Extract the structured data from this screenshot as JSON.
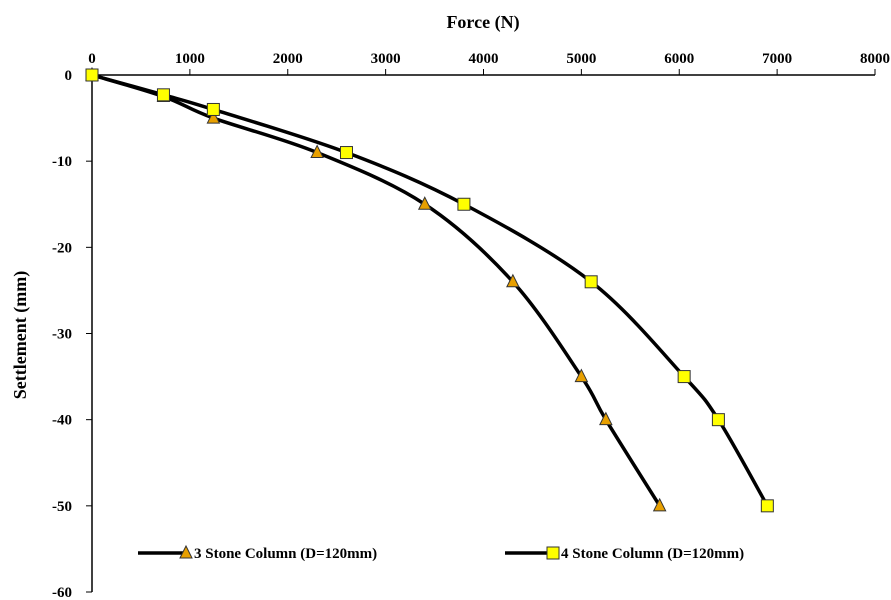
{
  "chart_data": {
    "type": "line",
    "title": "",
    "xlabel": "Force (N)",
    "ylabel": "Settlement (mm)",
    "xlim": [
      0,
      8000
    ],
    "ylim": [
      -60,
      0
    ],
    "xticks": [
      "0",
      "1000",
      "2000",
      "3000",
      "4000",
      "5000",
      "6000",
      "7000",
      "8000"
    ],
    "yticks": [
      "0",
      "-10",
      "-20",
      "-30",
      "-40",
      "-50",
      "-60"
    ],
    "x_axis_position": "top",
    "grid": false,
    "legend_position": "bottom",
    "series": [
      {
        "name": "3 Stone Column (D=120mm)",
        "marker": "triangle",
        "marker_color": "#E8A000",
        "line_color": "#000000",
        "points": [
          {
            "x": 0,
            "y": 0
          },
          {
            "x": 730,
            "y": -2.5
          },
          {
            "x": 1240,
            "y": -5
          },
          {
            "x": 2300,
            "y": -9
          },
          {
            "x": 3400,
            "y": -15
          },
          {
            "x": 4300,
            "y": -24
          },
          {
            "x": 5000,
            "y": -35
          },
          {
            "x": 5250,
            "y": -40
          },
          {
            "x": 5800,
            "y": -50
          }
        ]
      },
      {
        "name": "4 Stone Column (D=120mm)",
        "marker": "square",
        "marker_color": "#FFFF00",
        "line_color": "#000000",
        "points": [
          {
            "x": 0,
            "y": 0
          },
          {
            "x": 730,
            "y": -2.3
          },
          {
            "x": 1240,
            "y": -4
          },
          {
            "x": 2600,
            "y": -9
          },
          {
            "x": 3800,
            "y": -15
          },
          {
            "x": 5100,
            "y": -24
          },
          {
            "x": 6050,
            "y": -35
          },
          {
            "x": 6400,
            "y": -40
          },
          {
            "x": 6900,
            "y": -50
          }
        ]
      }
    ]
  }
}
